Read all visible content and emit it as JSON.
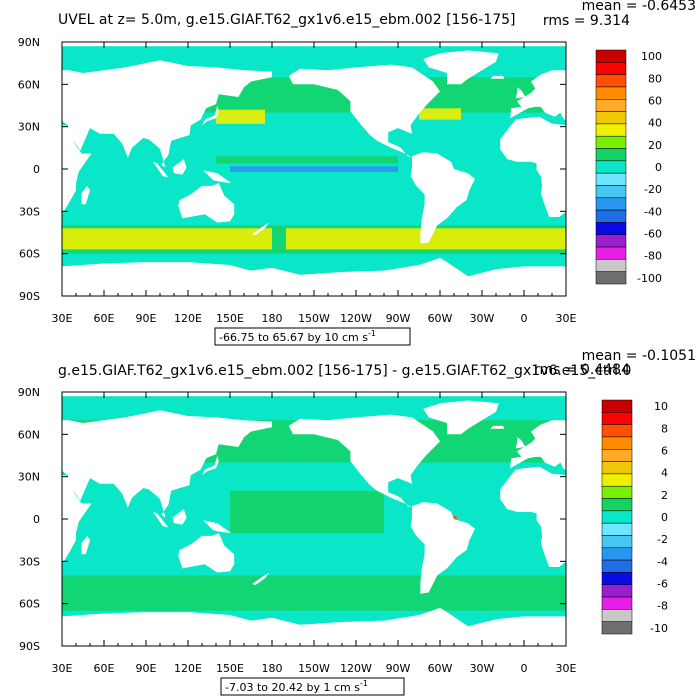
{
  "palette": [
    "#6e6e6e",
    "#c8c8c8",
    "#e61ee6",
    "#9b1ecd",
    "#0a0ae6",
    "#1e6ee6",
    "#2896f0",
    "#46c8f0",
    "#6ee6ff",
    "#0ae6c8",
    "#14d264",
    "#78f000",
    "#f0f000",
    "#f0c80a",
    "#ffaa28",
    "#ff8c00",
    "#ff5000",
    "#ff0000",
    "#c80000"
  ],
  "colors": {
    "land": "#ffffff",
    "frame": "#000000"
  },
  "chart_data": [
    {
      "type": "heatmap",
      "title": "UVEL at z=   5.0m, g.e15.GIAF.T62_gx1v6.e15_ebm.002 [156-175]",
      "stats": {
        "mean": "mean = -0.6453",
        "rms": "rms = 9.314"
      },
      "x_ticks": [
        "30E",
        "60E",
        "90E",
        "120E",
        "150E",
        "180",
        "150W",
        "120W",
        "90W",
        "60W",
        "30W",
        "0",
        "30E"
      ],
      "y_ticks": [
        "90N",
        "60N",
        "30N",
        "0",
        "30S",
        "60S",
        "90S"
      ],
      "colorbar_labels": [
        "100",
        "80",
        "60",
        "40",
        "20",
        "0",
        "-20",
        "-40",
        "-60",
        "-80",
        "-100"
      ],
      "range_label": {
        "text": "-66.75 to 65.67 by 10 cm s",
        "sup": "-1"
      },
      "levels": [
        -100,
        100
      ],
      "base_level": 9,
      "features": [
        {
          "region": "southern-ocean jet",
          "level": 12,
          "lon": [
            -170,
            180
          ],
          "lat": [
            -57,
            -42
          ]
        },
        {
          "region": "kuroshio extension",
          "level": 12,
          "lon": [
            140,
            175
          ],
          "lat": [
            32,
            42
          ]
        },
        {
          "region": "gulf stream",
          "level": 12,
          "lon": [
            -75,
            -45
          ],
          "lat": [
            35,
            43
          ]
        },
        {
          "region": "equatorial undercurrent",
          "level": 6,
          "lon": [
            150,
            -90
          ],
          "lat": [
            -2,
            2
          ]
        },
        {
          "region": "countercurrent",
          "level": 10,
          "lon": [
            140,
            -90
          ],
          "lat": [
            4,
            9
          ]
        }
      ]
    },
    {
      "type": "heatmap",
      "title": "g.e15.GIAF.T62_gx1v6.e15_ebm.002 [156-175] - g.e15.GIAF.T62_gx1v6.e15_ctrl.0",
      "stats": {
        "mean": "mean = -0.1051",
        "rms": "rms = 0.4484"
      },
      "x_ticks": [
        "30E",
        "60E",
        "90E",
        "120E",
        "150E",
        "180",
        "150W",
        "120W",
        "90W",
        "60W",
        "30W",
        "0",
        "30E"
      ],
      "y_ticks": [
        "90N",
        "60N",
        "30N",
        "0",
        "30S",
        "60S",
        "90S"
      ],
      "colorbar_labels": [
        "10",
        "8",
        "6",
        "4",
        "2",
        "0",
        "-2",
        "-4",
        "-6",
        "-8",
        "-10"
      ],
      "range_label": {
        "text": "-7.03 to 20.42 by 1 cm s",
        "sup": "-1"
      },
      "levels": [
        -10,
        10
      ],
      "base_level": 9,
      "features": [
        {
          "region": "tropical pacific",
          "level": 10,
          "lon": [
            150,
            -100
          ],
          "lat": [
            -10,
            20
          ]
        },
        {
          "region": "amazon outflow",
          "level": 16,
          "lon": [
            -52,
            -48
          ],
          "lat": [
            -1,
            2
          ]
        },
        {
          "region": "southern-ocean",
          "level": 10,
          "lon": [
            -180,
            180
          ],
          "lat": [
            -60,
            -45
          ]
        }
      ]
    }
  ]
}
